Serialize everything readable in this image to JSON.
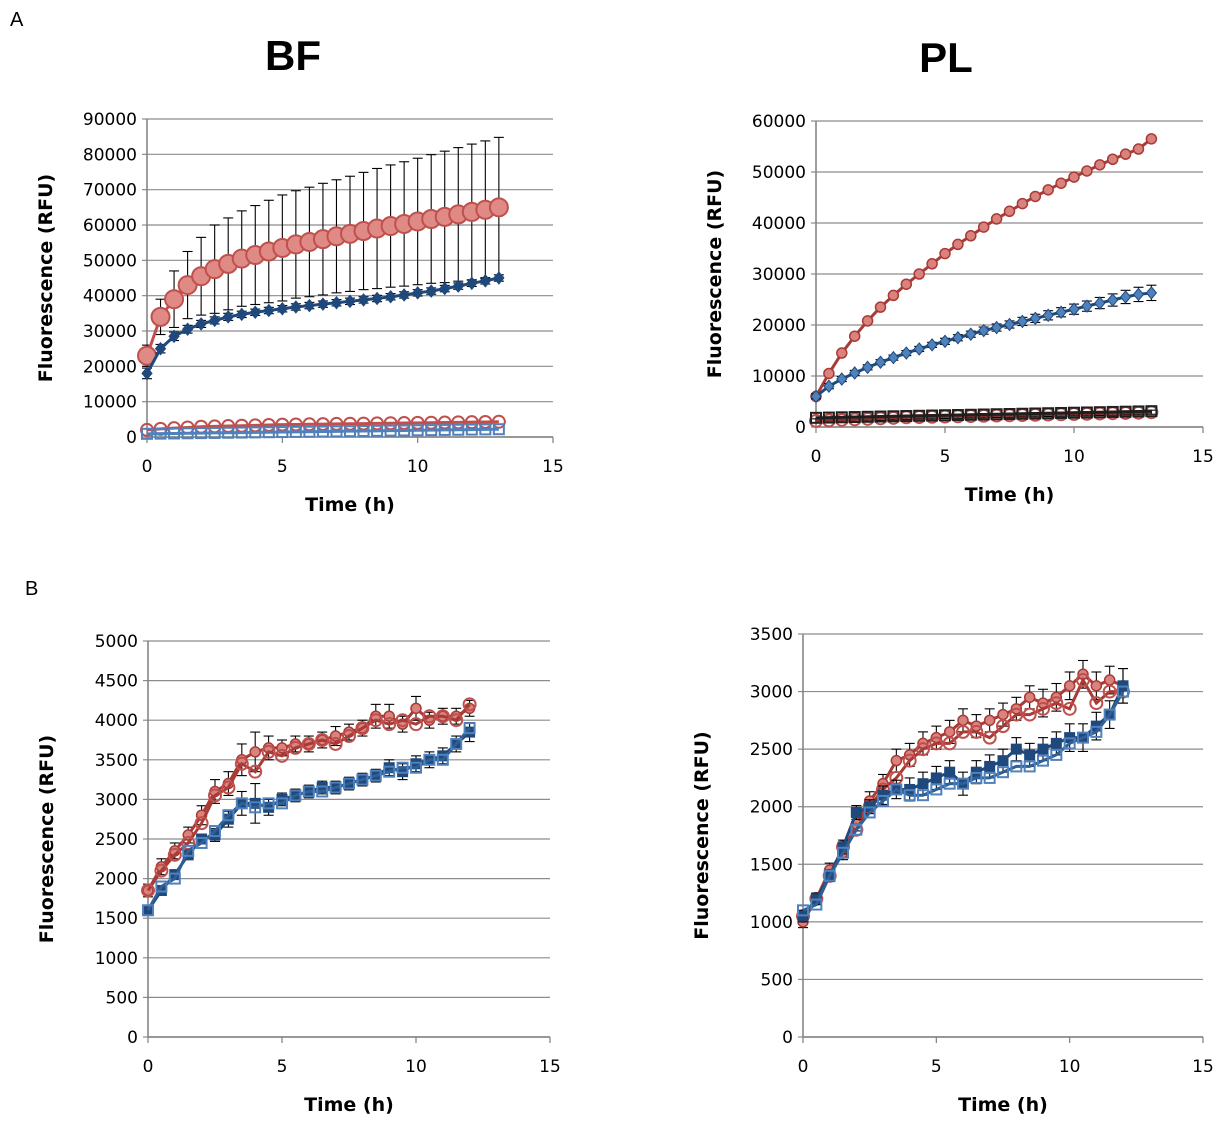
{
  "panel_labels": [
    "A",
    "B"
  ],
  "chart_data": [
    {
      "id": "bf_a",
      "type": "line",
      "title": "BF",
      "xlabel": "Time (h)",
      "ylabel": "Fluorescence (RFU)",
      "xlim": [
        0,
        15
      ],
      "ylim": [
        0,
        90000
      ],
      "xticks": [
        0,
        5,
        10,
        15
      ],
      "yticks": [
        0,
        10000,
        20000,
        30000,
        40000,
        50000,
        60000,
        70000,
        80000,
        90000
      ],
      "grid": "horizontal",
      "x": [
        0,
        0.5,
        1,
        1.5,
        2,
        2.5,
        3,
        3.5,
        4,
        4.5,
        5,
        5.5,
        6,
        6.5,
        7,
        7.5,
        8,
        8.5,
        9,
        9.5,
        10,
        10.5,
        11,
        11.5,
        12,
        12.5,
        13
      ],
      "series": [
        {
          "color": "#e08a86",
          "stroke": "#c0504d",
          "marker": "circle-filled-large",
          "values": [
            23000,
            34000,
            39000,
            43000,
            45500,
            47500,
            49000,
            50500,
            51500,
            52500,
            53500,
            54500,
            55200,
            56000,
            56800,
            57500,
            58300,
            59000,
            59700,
            60300,
            61000,
            61700,
            62300,
            63000,
            63700,
            64300,
            65000
          ],
          "err": [
            3000,
            5000,
            8000,
            9500,
            11000,
            12500,
            13000,
            13500,
            14000,
            14500,
            15000,
            15200,
            15500,
            15800,
            16000,
            16300,
            16600,
            17000,
            17300,
            17600,
            17900,
            18200,
            18600,
            18900,
            19200,
            19500,
            19800
          ]
        },
        {
          "color": "#1f497d",
          "stroke": "#1f497d",
          "marker": "diamond",
          "values": [
            18000,
            25000,
            28500,
            30500,
            32000,
            33000,
            34000,
            34700,
            35300,
            35800,
            36300,
            36800,
            37200,
            37600,
            38000,
            38400,
            38800,
            39200,
            39700,
            40200,
            40800,
            41300,
            42000,
            42700,
            43500,
            44200,
            45000
          ],
          "err": [
            1500,
            1200,
            1200,
            1100,
            1000,
            1000,
            1000,
            900,
            900,
            900,
            900,
            900,
            900,
            900,
            900,
            900,
            900,
            900,
            900,
            900,
            900,
            900,
            900,
            900,
            900,
            900,
            900
          ]
        },
        {
          "color": "#c0504d",
          "stroke": "#c0504d",
          "marker": "circle-open",
          "values": [
            2000,
            2300,
            2500,
            2700,
            2900,
            3000,
            3100,
            3200,
            3300,
            3400,
            3500,
            3550,
            3600,
            3650,
            3700,
            3750,
            3800,
            3850,
            3900,
            3950,
            4000,
            4050,
            4100,
            4150,
            4200,
            4250,
            4300
          ],
          "err": []
        },
        {
          "color": "#4f81bd",
          "stroke": "#4f81bd",
          "marker": "square-open",
          "values": [
            900,
            950,
            1000,
            1050,
            1100,
            1150,
            1200,
            1250,
            1300,
            1350,
            1400,
            1450,
            1500,
            1550,
            1600,
            1650,
            1700,
            1750,
            1800,
            1850,
            1900,
            1950,
            2000,
            2050,
            2100,
            2150,
            2200
          ],
          "err": []
        }
      ]
    },
    {
      "id": "pl_a",
      "type": "line",
      "title": "PL",
      "xlabel": "Time (h)",
      "ylabel": "Fluorescence (RFU)",
      "xlim": [
        0,
        15
      ],
      "ylim": [
        0,
        60000
      ],
      "xticks": [
        0,
        5,
        10,
        15
      ],
      "yticks": [
        0,
        10000,
        20000,
        30000,
        40000,
        50000,
        60000
      ],
      "grid": "horizontal",
      "x": [
        0,
        0.5,
        1,
        1.5,
        2,
        2.5,
        3,
        3.5,
        4,
        4.5,
        5,
        5.5,
        6,
        6.5,
        7,
        7.5,
        8,
        8.5,
        9,
        9.5,
        10,
        10.5,
        11,
        11.5,
        12,
        12.5,
        13
      ],
      "series": [
        {
          "color": "#d9837f",
          "stroke": "#a93a36",
          "marker": "circle-filled",
          "values": [
            6000,
            10500,
            14500,
            17800,
            20800,
            23500,
            25800,
            28000,
            30000,
            32000,
            34000,
            35800,
            37500,
            39200,
            40800,
            42300,
            43800,
            45200,
            46500,
            47800,
            49000,
            50200,
            51400,
            52500,
            53500,
            54500,
            56500
          ],
          "err": []
        },
        {
          "color": "#4f81bd",
          "stroke": "#1f497d",
          "marker": "diamond",
          "values": [
            6000,
            8000,
            9400,
            10600,
            11700,
            12700,
            13600,
            14500,
            15300,
            16100,
            16800,
            17500,
            18200,
            18900,
            19500,
            20100,
            20700,
            21300,
            21900,
            22500,
            23100,
            23700,
            24300,
            24900,
            25500,
            26000,
            26300
          ],
          "err": [
            500,
            500,
            500,
            500,
            500,
            500,
            500,
            500,
            500,
            500,
            600,
            600,
            600,
            700,
            700,
            700,
            800,
            800,
            900,
            900,
            1000,
            1000,
            1100,
            1200,
            1300,
            1400,
            1500
          ]
        },
        {
          "color": "#c0504d",
          "stroke": "#8b2e2b",
          "marker": "circle-open",
          "values": [
            1200,
            1300,
            1400,
            1500,
            1600,
            1700,
            1800,
            1900,
            1950,
            2000,
            2050,
            2100,
            2150,
            2200,
            2250,
            2300,
            2350,
            2400,
            2450,
            2500,
            2550,
            2600,
            2650,
            2700,
            2750,
            2800,
            2900
          ],
          "err": [
            400,
            400,
            400,
            400,
            400,
            400,
            400,
            400,
            400,
            400,
            400,
            400,
            400,
            400,
            400,
            400,
            400,
            400,
            400,
            400,
            400,
            400,
            400,
            400,
            400,
            400,
            400
          ]
        },
        {
          "color": "#1f1f1f",
          "stroke": "#1f1f1f",
          "marker": "square-open",
          "values": [
            1800,
            1850,
            1900,
            1950,
            2000,
            2050,
            2100,
            2150,
            2200,
            2250,
            2300,
            2350,
            2400,
            2450,
            2500,
            2550,
            2600,
            2650,
            2700,
            2750,
            2800,
            2850,
            2900,
            2950,
            3000,
            3050,
            3100
          ],
          "err": []
        }
      ]
    },
    {
      "id": "bf_b",
      "type": "line",
      "title": "",
      "xlabel": "Time (h)",
      "ylabel": "Fluorescence (RFU)",
      "xlim": [
        0,
        15
      ],
      "ylim": [
        0,
        5000
      ],
      "xticks": [
        0,
        5,
        10,
        15
      ],
      "yticks": [
        0,
        500,
        1000,
        1500,
        2000,
        2500,
        3000,
        3500,
        4000,
        4500,
        5000
      ],
      "grid": "horizontal",
      "x": [
        0,
        0.5,
        1,
        1.5,
        2,
        2.5,
        3,
        3.5,
        4,
        4.5,
        5,
        5.5,
        6,
        6.5,
        7,
        7.5,
        8,
        8.5,
        9,
        9.5,
        10,
        10.5,
        11,
        11.5,
        12
      ],
      "series": [
        {
          "color": "#d9837f",
          "stroke": "#a93a36",
          "marker": "circle-filled",
          "values": [
            1850,
            2150,
            2350,
            2550,
            2800,
            3100,
            3200,
            3500,
            3600,
            3650,
            3650,
            3700,
            3700,
            3750,
            3800,
            3850,
            3900,
            4050,
            4050,
            3950,
            4150,
            4000,
            4050,
            4050,
            4150
          ],
          "err": [
            80,
            100,
            100,
            100,
            120,
            150,
            150,
            200,
            250,
            150,
            100,
            100,
            100,
            100,
            120,
            100,
            100,
            150,
            150,
            100,
            150,
            100,
            100,
            100,
            100
          ]
        },
        {
          "color": "#c0504d",
          "stroke": "#a93a36",
          "marker": "circle-open",
          "values": [
            1850,
            2100,
            2300,
            2450,
            2700,
            3050,
            3150,
            3450,
            3350,
            3600,
            3550,
            3650,
            3700,
            3750,
            3700,
            3800,
            3900,
            4000,
            3950,
            4000,
            3950,
            4050,
            4050,
            4000,
            4200
          ],
          "err": []
        },
        {
          "color": "#1f497d",
          "stroke": "#1f497d",
          "marker": "square-filled",
          "values": [
            1600,
            1850,
            2050,
            2300,
            2500,
            2550,
            2750,
            2950,
            2950,
            2900,
            3000,
            3050,
            3100,
            3150,
            3150,
            3200,
            3250,
            3300,
            3400,
            3350,
            3450,
            3500,
            3550,
            3700,
            3850
          ],
          "err": [
            60,
            60,
            60,
            60,
            60,
            80,
            100,
            150,
            250,
            100,
            80,
            80,
            80,
            80,
            80,
            80,
            80,
            80,
            100,
            100,
            100,
            100,
            100,
            100,
            120
          ]
        },
        {
          "color": "#4f81bd",
          "stroke": "#2f5f95",
          "marker": "square-open",
          "values": [
            1600,
            1900,
            2000,
            2350,
            2450,
            2600,
            2800,
            2950,
            2900,
            2950,
            2950,
            3050,
            3100,
            3100,
            3150,
            3200,
            3250,
            3300,
            3350,
            3400,
            3400,
            3500,
            3500,
            3700,
            3900
          ],
          "err": []
        }
      ]
    },
    {
      "id": "pl_b",
      "type": "line",
      "title": "",
      "xlabel": "Time (h)",
      "ylabel": "Fluorescence (RFU)",
      "xlim": [
        0,
        15
      ],
      "ylim": [
        0,
        3500
      ],
      "xticks": [
        0,
        5,
        10,
        15
      ],
      "yticks": [
        0,
        500,
        1000,
        1500,
        2000,
        2500,
        3000,
        3500
      ],
      "grid": "horizontal",
      "x": [
        0,
        0.5,
        1,
        1.5,
        2,
        2.5,
        3,
        3.5,
        4,
        4.5,
        5,
        5.5,
        6,
        6.5,
        7,
        7.5,
        8,
        8.5,
        9,
        9.5,
        10,
        10.5,
        11,
        11.5,
        12
      ],
      "series": [
        {
          "color": "#d9837f",
          "stroke": "#a93a36",
          "marker": "circle-filled",
          "values": [
            1000,
            1200,
            1450,
            1600,
            1850,
            2050,
            2200,
            2400,
            2450,
            2550,
            2600,
            2650,
            2750,
            2700,
            2750,
            2800,
            2850,
            2950,
            2900,
            2950,
            3050,
            3150,
            3050,
            3100,
            3050
          ],
          "err": [
            50,
            50,
            60,
            60,
            60,
            80,
            80,
            100,
            100,
            100,
            100,
            100,
            100,
            100,
            100,
            100,
            100,
            100,
            120,
            120,
            120,
            120,
            120,
            120,
            150
          ]
        },
        {
          "color": "#c0504d",
          "stroke": "#a93a36",
          "marker": "circle-open",
          "values": [
            1050,
            1200,
            1400,
            1650,
            1800,
            2000,
            2150,
            2250,
            2400,
            2500,
            2550,
            2550,
            2650,
            2650,
            2600,
            2700,
            2800,
            2800,
            2850,
            2900,
            2850,
            3100,
            2900,
            3000,
            3000
          ],
          "err": []
        },
        {
          "color": "#1f497d",
          "stroke": "#1f497d",
          "marker": "square-filled",
          "values": [
            1050,
            1200,
            1400,
            1650,
            1950,
            2000,
            2100,
            2150,
            2150,
            2200,
            2250,
            2300,
            2200,
            2300,
            2350,
            2400,
            2500,
            2450,
            2500,
            2550,
            2600,
            2600,
            2700,
            2800,
            3050
          ],
          "err": [
            50,
            50,
            50,
            60,
            60,
            60,
            80,
            80,
            100,
            100,
            100,
            100,
            100,
            100,
            100,
            100,
            100,
            100,
            100,
            100,
            120,
            120,
            120,
            120,
            150
          ]
        },
        {
          "color": "#4f81bd",
          "stroke": "#2f5f95",
          "marker": "square-open",
          "values": [
            1100,
            1150,
            1400,
            1600,
            1800,
            1950,
            2050,
            2150,
            2100,
            2100,
            2150,
            2200,
            2200,
            2250,
            2250,
            2300,
            2350,
            2350,
            2400,
            2450,
            2550,
            2600,
            2650,
            2800,
            3000
          ],
          "err": []
        }
      ]
    }
  ]
}
